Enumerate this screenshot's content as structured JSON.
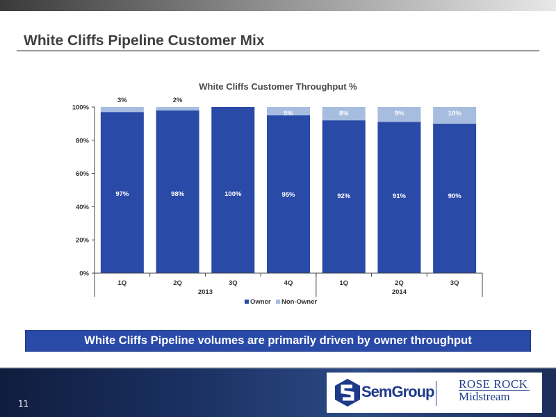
{
  "slide": {
    "title": "White Cliffs Pipeline Customer Mix",
    "callout": "White Cliffs Pipeline volumes are primarily driven by owner throughput",
    "page_number": "11"
  },
  "logos": {
    "semgroup": "SemGroup",
    "semgroup_mark": "®",
    "rose_rock_line1": "ROSE ROCK",
    "rose_rock_line2": "Midstream"
  },
  "colors": {
    "owner": "#2a4aa8",
    "non_owner": "#a7bde0",
    "axis": "#444444"
  },
  "chart_data": {
    "type": "bar",
    "stacked": true,
    "title": "White Cliffs Customer Throughput %",
    "categories": [
      "1Q",
      "2Q",
      "3Q",
      "4Q",
      "1Q",
      "2Q",
      "3Q"
    ],
    "groups": [
      {
        "label": "2013",
        "count": 4
      },
      {
        "label": "2014",
        "count": 3
      }
    ],
    "series": [
      {
        "name": "Owner",
        "values": [
          97,
          98,
          100,
          95,
          92,
          91,
          90
        ],
        "labels": [
          "97%",
          "98%",
          "100%",
          "95%",
          "92%",
          "91%",
          "90%"
        ]
      },
      {
        "name": "Non-Owner",
        "values": [
          3,
          2,
          0,
          5,
          8,
          9,
          10
        ],
        "labels": [
          "3%",
          "2%",
          "",
          "5%",
          "8%",
          "9%",
          "10%"
        ]
      }
    ],
    "yticks": [
      "0%",
      "20%",
      "40%",
      "60%",
      "80%",
      "100%"
    ],
    "ylim": [
      0,
      100
    ],
    "legend": "bottom",
    "grid": false
  }
}
